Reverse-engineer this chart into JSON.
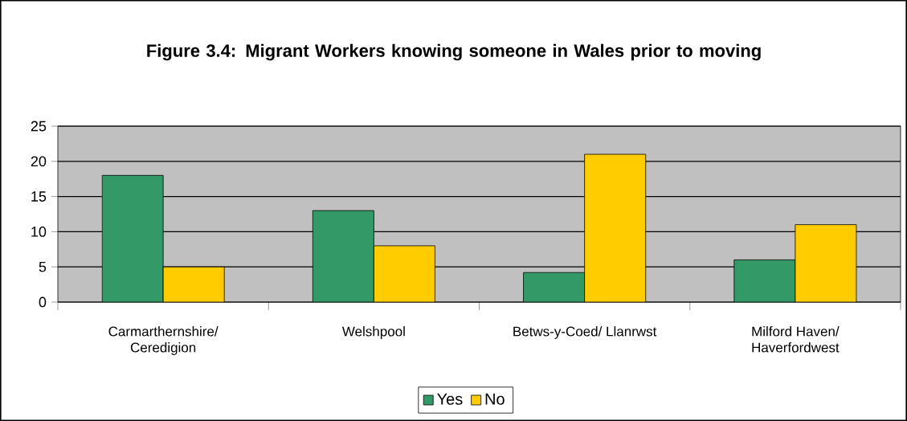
{
  "chart_data": {
    "type": "bar",
    "title": "Figure 3.4: Migrant Workers knowing someone in Wales prior to moving",
    "categories": [
      "Carmarthernshire/ Ceredigion",
      "Welshpool",
      "Betws-y-Coed/ Llanrwst",
      "Milford Haven/ Haverfordwest"
    ],
    "series": [
      {
        "name": "Yes",
        "color": "#339966",
        "values": [
          18,
          13,
          4.2,
          6
        ]
      },
      {
        "name": "No",
        "color": "#ffcc00",
        "values": [
          5,
          8,
          21,
          11
        ]
      }
    ],
    "ylim": [
      0,
      25
    ],
    "yticks": [
      0,
      5,
      10,
      15,
      20,
      25
    ],
    "grid": "y",
    "legend": "bottom"
  }
}
